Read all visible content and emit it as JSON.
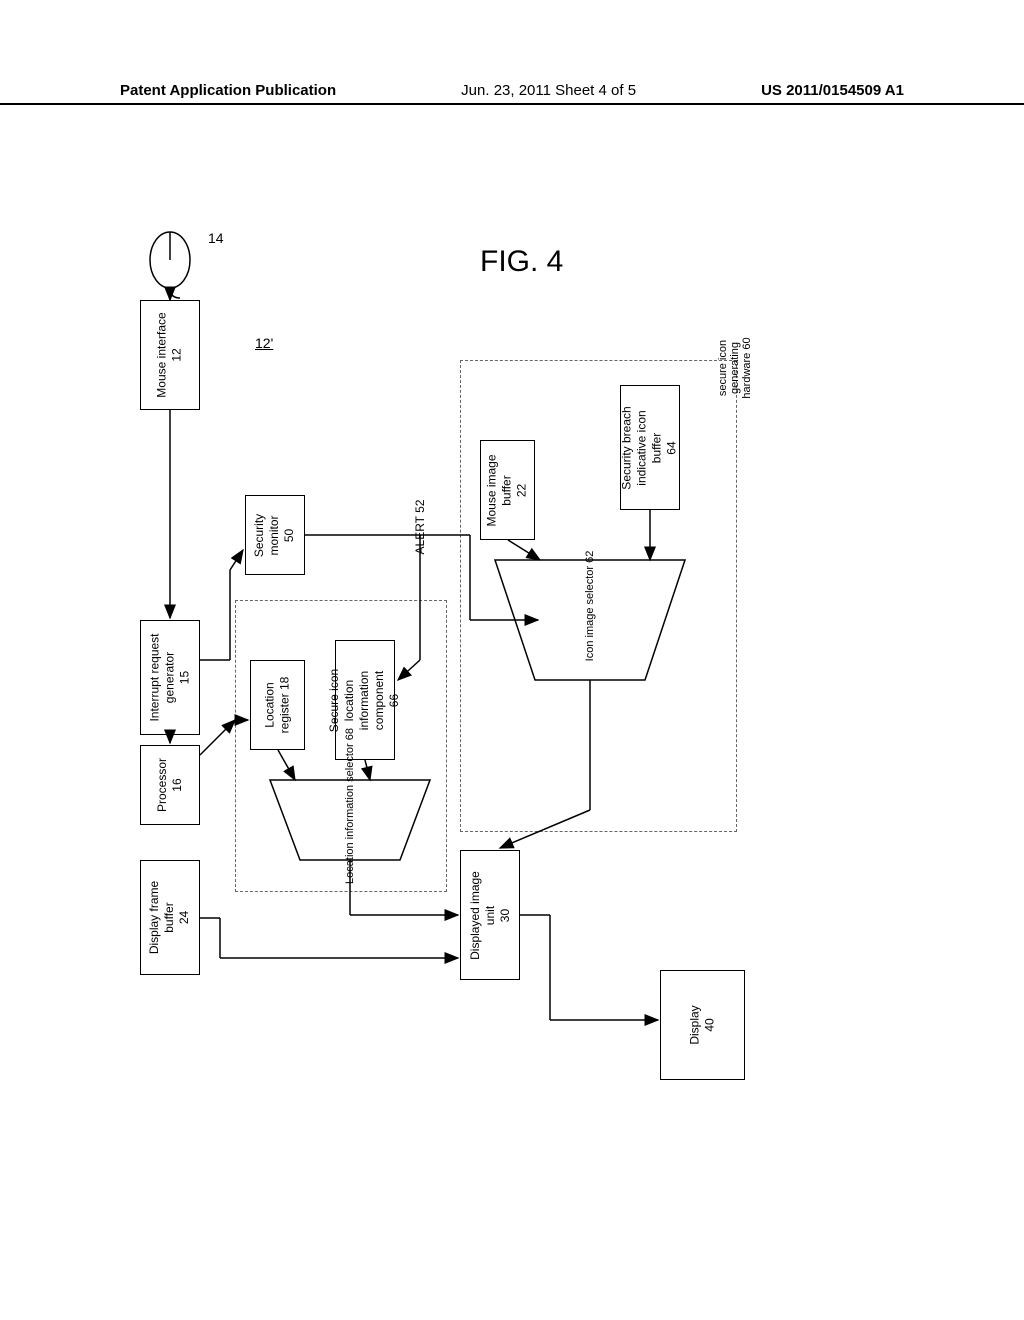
{
  "header": {
    "left": "Patent Application Publication",
    "center": "Jun. 23, 2011  Sheet 4 of 5",
    "right": "US 2011/0154509 A1"
  },
  "figure_label": "FIG. 4",
  "ref_number": "12'",
  "mouse_ref": "14",
  "nodes": {
    "display_frame_buffer": "Display frame\nbuffer\n24",
    "processor": "Processor\n16",
    "interrupt_request_generator": "Interrupt request\ngenerator\n15",
    "mouse_interface": "Mouse interface\n12",
    "security_monitor": "Security\nmonitor\n50",
    "location_register": "Location\nregister 18",
    "secure_icon_location": "Secure icon\nlocation\ninformation\ncomponent\n66",
    "location_selector": "Location information selector 68",
    "icon_image_selector": "Icon image selector 62",
    "mouse_image_buffer": "Mouse image\nbuffer\n22",
    "security_breach_buffer": "Security breach\nindicative icon\nbuffer\n64",
    "secure_icon_hw": "secure icon\ngenerating\nhardware 60",
    "displayed_image_unit": "Displayed image\nunit\n30",
    "display": "Display\n40",
    "alert": "ALERT 52"
  },
  "style": {
    "page_bg": "#ffffff",
    "line_color": "#000000",
    "dash_color": "#666666",
    "font_family": "Arial",
    "box_fontsize": 12,
    "header_fontsize": 15,
    "fig_fontsize": 30
  }
}
